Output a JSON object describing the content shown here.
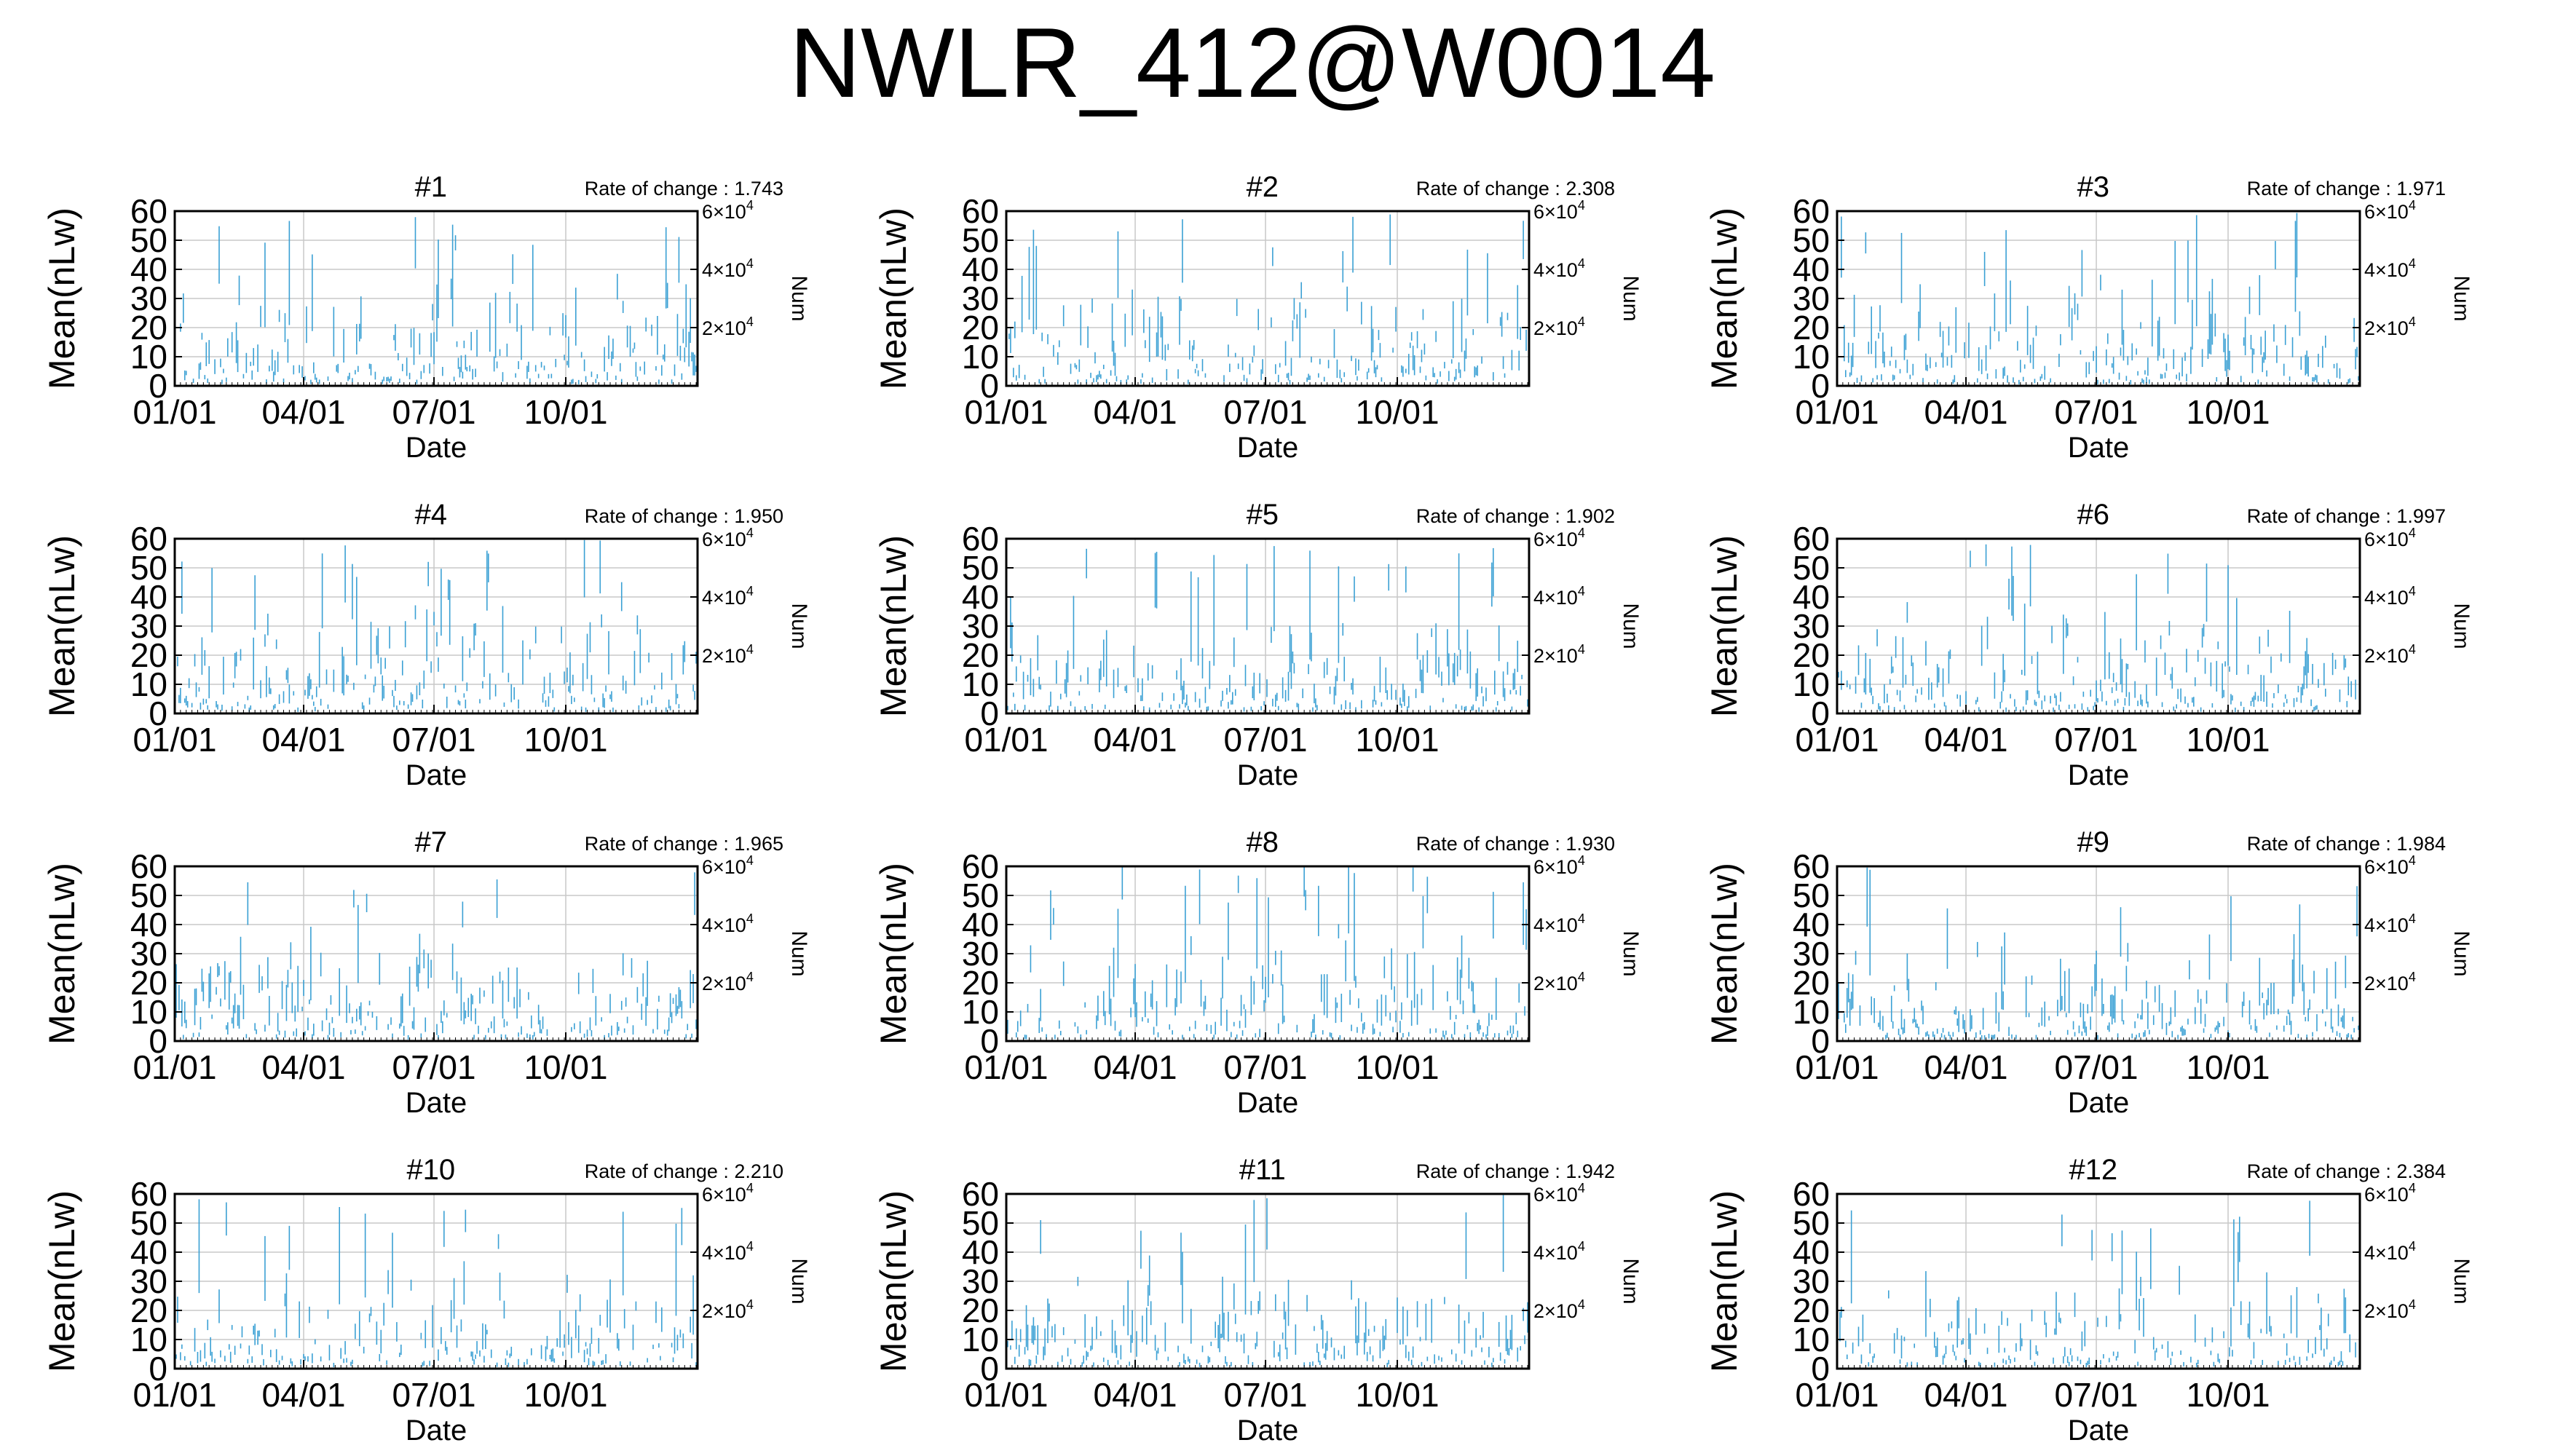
{
  "title": "NWLR_412@W0014",
  "chart_data": [
    {
      "type": "bar",
      "title": "#1",
      "rate_text": "Rate of change : 1.743",
      "xlabel": "Date",
      "ylabel": "Mean(nLw)",
      "y2label": "Num",
      "x_ticks": [
        "01/01",
        "04/01",
        "07/01",
        "10/01"
      ],
      "y_ticks": [
        "0",
        "10",
        "20",
        "30",
        "40",
        "50",
        "60"
      ],
      "ylim": [
        0,
        60
      ],
      "y2_ticks": [
        {
          "label": "2×10",
          "exp": "4"
        },
        {
          "label": "4×10",
          "exp": "4"
        },
        {
          "label": "6×10",
          "exp": "4"
        }
      ],
      "y2lim": [
        0,
        60000
      ],
      "x_domain": [
        "01/01",
        "12/31"
      ],
      "grid": true,
      "series_color": "#3aa0d4"
    },
    {
      "type": "bar",
      "title": "#2",
      "rate_text": "Rate of change : 2.308",
      "xlabel": "Date",
      "ylabel": "Mean(nLw)",
      "y2label": "Num",
      "x_ticks": [
        "01/01",
        "04/01",
        "07/01",
        "10/01"
      ],
      "y_ticks": [
        "0",
        "10",
        "20",
        "30",
        "40",
        "50",
        "60"
      ],
      "ylim": [
        0,
        60
      ],
      "y2_ticks": [
        {
          "label": "2×10",
          "exp": "4"
        },
        {
          "label": "4×10",
          "exp": "4"
        },
        {
          "label": "6×10",
          "exp": "4"
        }
      ],
      "y2lim": [
        0,
        60000
      ],
      "x_domain": [
        "01/01",
        "12/31"
      ],
      "grid": true,
      "series_color": "#3aa0d4"
    },
    {
      "type": "bar",
      "title": "#3",
      "rate_text": "Rate of change : 1.971",
      "xlabel": "Date",
      "ylabel": "Mean(nLw)",
      "y2label": "Num",
      "x_ticks": [
        "01/01",
        "04/01",
        "07/01",
        "10/01"
      ],
      "y_ticks": [
        "0",
        "10",
        "20",
        "30",
        "40",
        "50",
        "60"
      ],
      "ylim": [
        0,
        60
      ],
      "y2_ticks": [
        {
          "label": "2×10",
          "exp": "4"
        },
        {
          "label": "4×10",
          "exp": "4"
        },
        {
          "label": "6×10",
          "exp": "4"
        }
      ],
      "y2lim": [
        0,
        60000
      ],
      "x_domain": [
        "01/01",
        "12/31"
      ],
      "grid": true,
      "series_color": "#3aa0d4"
    },
    {
      "type": "bar",
      "title": "#4",
      "rate_text": "Rate of change : 1.950",
      "xlabel": "Date",
      "ylabel": "Mean(nLw)",
      "y2label": "Num",
      "x_ticks": [
        "01/01",
        "04/01",
        "07/01",
        "10/01"
      ],
      "y_ticks": [
        "0",
        "10",
        "20",
        "30",
        "40",
        "50",
        "60"
      ],
      "ylim": [
        0,
        60
      ],
      "y2_ticks": [
        {
          "label": "2×10",
          "exp": "4"
        },
        {
          "label": "4×10",
          "exp": "4"
        },
        {
          "label": "6×10",
          "exp": "4"
        }
      ],
      "y2lim": [
        0,
        60000
      ],
      "x_domain": [
        "01/01",
        "12/31"
      ],
      "grid": true,
      "series_color": "#3aa0d4"
    },
    {
      "type": "bar",
      "title": "#5",
      "rate_text": "Rate of change : 1.902",
      "xlabel": "Date",
      "ylabel": "Mean(nLw)",
      "y2label": "Num",
      "x_ticks": [
        "01/01",
        "04/01",
        "07/01",
        "10/01"
      ],
      "y_ticks": [
        "0",
        "10",
        "20",
        "30",
        "40",
        "50",
        "60"
      ],
      "ylim": [
        0,
        60
      ],
      "y2_ticks": [
        {
          "label": "2×10",
          "exp": "4"
        },
        {
          "label": "4×10",
          "exp": "4"
        },
        {
          "label": "6×10",
          "exp": "4"
        }
      ],
      "y2lim": [
        0,
        60000
      ],
      "x_domain": [
        "01/01",
        "12/31"
      ],
      "grid": true,
      "series_color": "#3aa0d4"
    },
    {
      "type": "bar",
      "title": "#6",
      "rate_text": "Rate of change : 1.997",
      "xlabel": "Date",
      "ylabel": "Mean(nLw)",
      "y2label": "Num",
      "x_ticks": [
        "01/01",
        "04/01",
        "07/01",
        "10/01"
      ],
      "y_ticks": [
        "0",
        "10",
        "20",
        "30",
        "40",
        "50",
        "60"
      ],
      "ylim": [
        0,
        60
      ],
      "y2_ticks": [
        {
          "label": "2×10",
          "exp": "4"
        },
        {
          "label": "4×10",
          "exp": "4"
        },
        {
          "label": "6×10",
          "exp": "4"
        }
      ],
      "y2lim": [
        0,
        60000
      ],
      "x_domain": [
        "01/01",
        "12/31"
      ],
      "grid": true,
      "series_color": "#3aa0d4"
    },
    {
      "type": "bar",
      "title": "#7",
      "rate_text": "Rate of change : 1.965",
      "xlabel": "Date",
      "ylabel": "Mean(nLw)",
      "y2label": "Num",
      "x_ticks": [
        "01/01",
        "04/01",
        "07/01",
        "10/01"
      ],
      "y_ticks": [
        "0",
        "10",
        "20",
        "30",
        "40",
        "50",
        "60"
      ],
      "ylim": [
        0,
        60
      ],
      "y2_ticks": [
        {
          "label": "2×10",
          "exp": "4"
        },
        {
          "label": "4×10",
          "exp": "4"
        },
        {
          "label": "6×10",
          "exp": "4"
        }
      ],
      "y2lim": [
        0,
        60000
      ],
      "x_domain": [
        "01/01",
        "12/31"
      ],
      "grid": true,
      "series_color": "#3aa0d4"
    },
    {
      "type": "bar",
      "title": "#8",
      "rate_text": "Rate of change : 1.930",
      "xlabel": "Date",
      "ylabel": "Mean(nLw)",
      "y2label": "Num",
      "x_ticks": [
        "01/01",
        "04/01",
        "07/01",
        "10/01"
      ],
      "y_ticks": [
        "0",
        "10",
        "20",
        "30",
        "40",
        "50",
        "60"
      ],
      "ylim": [
        0,
        60
      ],
      "y2_ticks": [
        {
          "label": "2×10",
          "exp": "4"
        },
        {
          "label": "4×10",
          "exp": "4"
        },
        {
          "label": "6×10",
          "exp": "4"
        }
      ],
      "y2lim": [
        0,
        60000
      ],
      "x_domain": [
        "01/01",
        "12/31"
      ],
      "grid": true,
      "series_color": "#3aa0d4"
    },
    {
      "type": "bar",
      "title": "#9",
      "rate_text": "Rate of change : 1.984",
      "xlabel": "Date",
      "ylabel": "Mean(nLw)",
      "y2label": "Num",
      "x_ticks": [
        "01/01",
        "04/01",
        "07/01",
        "10/01"
      ],
      "y_ticks": [
        "0",
        "10",
        "20",
        "30",
        "40",
        "50",
        "60"
      ],
      "ylim": [
        0,
        60
      ],
      "y2_ticks": [
        {
          "label": "2×10",
          "exp": "4"
        },
        {
          "label": "4×10",
          "exp": "4"
        },
        {
          "label": "6×10",
          "exp": "4"
        }
      ],
      "y2lim": [
        0,
        60000
      ],
      "x_domain": [
        "01/01",
        "12/31"
      ],
      "grid": true,
      "series_color": "#3aa0d4"
    },
    {
      "type": "bar",
      "title": "#10",
      "rate_text": "Rate of change : 2.210",
      "xlabel": "Date",
      "ylabel": "Mean(nLw)",
      "y2label": "Num",
      "x_ticks": [
        "01/01",
        "04/01",
        "07/01",
        "10/01"
      ],
      "y_ticks": [
        "0",
        "10",
        "20",
        "30",
        "40",
        "50",
        "60"
      ],
      "ylim": [
        0,
        60
      ],
      "y2_ticks": [
        {
          "label": "2×10",
          "exp": "4"
        },
        {
          "label": "4×10",
          "exp": "4"
        },
        {
          "label": "6×10",
          "exp": "4"
        }
      ],
      "y2lim": [
        0,
        60000
      ],
      "x_domain": [
        "01/01",
        "12/31"
      ],
      "grid": true,
      "series_color": "#3aa0d4"
    },
    {
      "type": "bar",
      "title": "#11",
      "rate_text": "Rate of change : 1.942",
      "xlabel": "Date",
      "ylabel": "Mean(nLw)",
      "y2label": "Num",
      "x_ticks": [
        "01/01",
        "04/01",
        "07/01",
        "10/01"
      ],
      "y_ticks": [
        "0",
        "10",
        "20",
        "30",
        "40",
        "50",
        "60"
      ],
      "ylim": [
        0,
        60
      ],
      "y2_ticks": [
        {
          "label": "2×10",
          "exp": "4"
        },
        {
          "label": "4×10",
          "exp": "4"
        },
        {
          "label": "6×10",
          "exp": "4"
        }
      ],
      "y2lim": [
        0,
        60000
      ],
      "x_domain": [
        "01/01",
        "12/31"
      ],
      "grid": true,
      "series_color": "#3aa0d4"
    },
    {
      "type": "bar",
      "title": "#12",
      "rate_text": "Rate of change : 2.384",
      "xlabel": "Date",
      "ylabel": "Mean(nLw)",
      "y2label": "Num",
      "x_ticks": [
        "01/01",
        "04/01",
        "07/01",
        "10/01"
      ],
      "y_ticks": [
        "0",
        "10",
        "20",
        "30",
        "40",
        "50",
        "60"
      ],
      "ylim": [
        0,
        60
      ],
      "y2_ticks": [
        {
          "label": "2×10",
          "exp": "4"
        },
        {
          "label": "4×10",
          "exp": "4"
        },
        {
          "label": "6×10",
          "exp": "4"
        }
      ],
      "y2lim": [
        0,
        60000
      ],
      "x_domain": [
        "01/01",
        "12/31"
      ],
      "grid": true,
      "series_color": "#3aa0d4"
    }
  ]
}
